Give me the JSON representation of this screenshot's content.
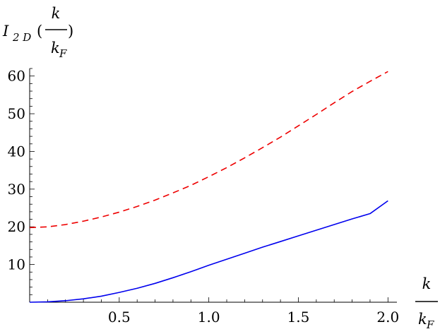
{
  "chart_data": {
    "type": "line",
    "title": "",
    "xlabel": "k/k_F",
    "ylabel": "I_2D(k/k_F)",
    "ylabel_parts": {
      "main": "I",
      "sub": "2 D",
      "open": "(",
      "num": "k",
      "den": "k",
      "den_sub": "F",
      "close": ")"
    },
    "xlabel_parts": {
      "num": "k",
      "den": "k",
      "den_sub": "F"
    },
    "xlim": [
      0,
      2.05
    ],
    "ylim": [
      0,
      62
    ],
    "x_ticks": [
      0.5,
      1.0,
      1.5,
      2.0
    ],
    "x_tick_labels": [
      "0.5",
      "1.0",
      "1.5",
      "2.0"
    ],
    "y_ticks": [
      10,
      20,
      30,
      40,
      50,
      60
    ],
    "y_tick_labels": [
      "10",
      "20",
      "30",
      "40",
      "50",
      "60"
    ],
    "grid": false,
    "series": [
      {
        "style": "solid",
        "color": "#0000ee",
        "x": [
          0,
          0.1,
          0.2,
          0.3,
          0.4,
          0.5,
          0.6,
          0.7,
          0.8,
          0.9,
          1.0,
          1.1,
          1.2,
          1.3,
          1.4,
          1.5,
          1.6,
          1.7,
          1.8,
          1.9,
          2.0
        ],
        "y": [
          0,
          0.1,
          0.4,
          0.9,
          1.6,
          2.6,
          3.7,
          5.0,
          6.5,
          8.1,
          9.8,
          11.4,
          13.0,
          14.6,
          16.1,
          17.6,
          19.1,
          20.6,
          22.1,
          23.5,
          26.9
        ]
      },
      {
        "style": "dashed",
        "color": "#ee0000",
        "x": [
          0,
          0.1,
          0.2,
          0.3,
          0.4,
          0.5,
          0.6,
          0.7,
          0.8,
          0.9,
          1.0,
          1.1,
          1.2,
          1.3,
          1.4,
          1.5,
          1.6,
          1.7,
          1.8,
          1.9,
          2.0
        ],
        "y": [
          19.8,
          20.0,
          20.6,
          21.5,
          22.6,
          23.9,
          25.4,
          27.1,
          29.0,
          31.0,
          33.3,
          35.7,
          38.3,
          41.0,
          43.8,
          46.8,
          49.8,
          52.9,
          55.9,
          58.6,
          61.2
        ]
      }
    ]
  }
}
